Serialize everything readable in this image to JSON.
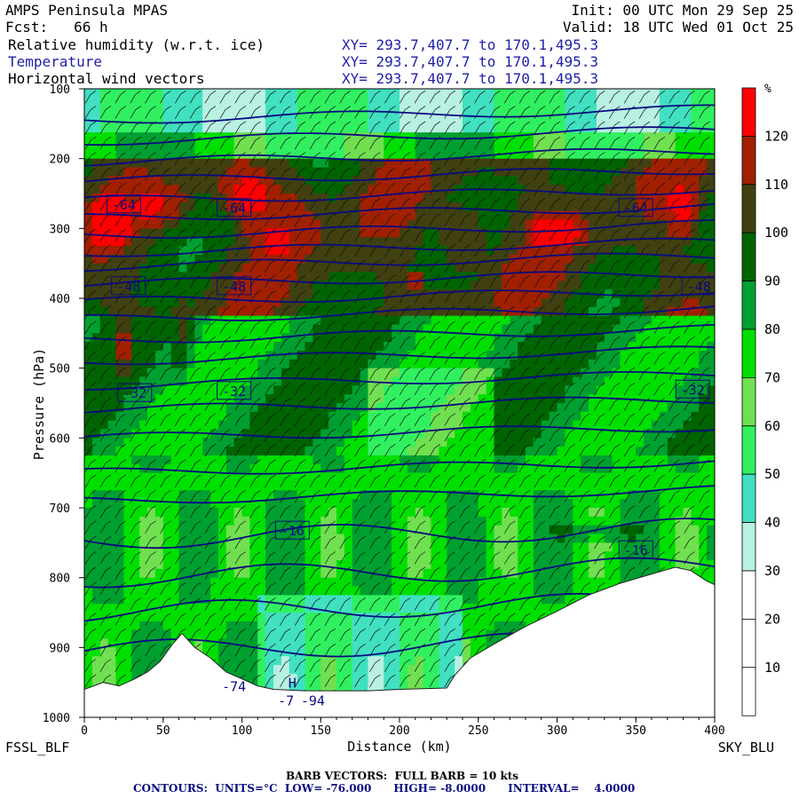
{
  "header": {
    "model": "AMPS Peninsula MPAS",
    "fcst": "Fcst:   66 h",
    "init": "Init: 00 UTC Mon 29 Sep 25",
    "valid": "Valid: 18 UTC Wed 01 Oct 25",
    "fields": [
      {
        "label": "Relative humidity (w.r.t. ice)",
        "xy": "XY= 293.7,407.7 to 170.1,495.3"
      },
      {
        "label": "Temperature",
        "xy": "XY= 293.7,407.7 to 170.1,495.3"
      },
      {
        "label": "Horizontal wind vectors",
        "xy": "XY= 293.7,407.7 to 170.1,495.3"
      }
    ]
  },
  "corner_left": "FSSL_BLF",
  "corner_right": "SKY_BLU",
  "footer": {
    "barb": "BARB VECTORS:  FULL BARB = 10 kts",
    "contours": "CONTOURS:  UNITS=°C  LOW= -76.000      HIGH= -8.0000      INTERVAL=    4.0000"
  },
  "colors": {
    "rh_scale": [
      "#ffffff",
      "#ffffff",
      "#ffffff",
      "#b8f0e2",
      "#40e0c0",
      "#30f060",
      "#70e050",
      "#00e000",
      "#00a030",
      "#006400",
      "#404010",
      "#a02000",
      "#ff0000"
    ],
    "temp_contour": "#0a0a80",
    "terrain": "#ffffff"
  },
  "chart_data": {
    "type": "heatmap",
    "xlabel": "Distance (km)",
    "ylabel": "Pressure (hPa)",
    "xlim": [
      0,
      400
    ],
    "ylim": [
      1000,
      100
    ],
    "x_ticks": [
      "0",
      "50",
      "100",
      "150",
      "200",
      "250",
      "300",
      "350",
      "400"
    ],
    "y_ticks": [
      "100",
      "200",
      "300",
      "400",
      "500",
      "600",
      "700",
      "800",
      "900",
      "1000"
    ],
    "colorbar": {
      "unit": "%",
      "ticks": [
        "120",
        "110",
        "100",
        "90",
        "80",
        "70",
        "60",
        "50",
        "40",
        "30",
        "20",
        "10"
      ]
    },
    "temperature_labels": [
      {
        "text": "-64",
        "x": 25,
        "p": 265
      },
      {
        "text": "-64",
        "x": 95,
        "p": 270
      },
      {
        "text": "-64",
        "x": 350,
        "p": 270
      },
      {
        "text": "-48",
        "x": 28,
        "p": 382
      },
      {
        "text": "-48",
        "x": 95,
        "p": 382
      },
      {
        "text": "-48",
        "x": 390,
        "p": 382
      },
      {
        "text": "-32",
        "x": 32,
        "p": 535
      },
      {
        "text": "-32",
        "x": 95,
        "p": 532
      },
      {
        "text": "-32",
        "x": 386,
        "p": 530
      },
      {
        "text": "-16",
        "x": 132,
        "p": 732
      },
      {
        "text": "-16",
        "x": 350,
        "p": 760
      },
      {
        "text": "-74",
        "x": 95,
        "p": 955
      },
      {
        "text": "-7",
        "x": 128,
        "p": 975
      },
      {
        "text": "-94",
        "x": 145,
        "p": 975
      },
      {
        "text": "H",
        "x": 132,
        "p": 950
      }
    ],
    "surface_pressure": [
      [
        0,
        960
      ],
      [
        12,
        950
      ],
      [
        22,
        955
      ],
      [
        32,
        945
      ],
      [
        40,
        935
      ],
      [
        48,
        920
      ],
      [
        56,
        895
      ],
      [
        62,
        880
      ],
      [
        70,
        900
      ],
      [
        80,
        915
      ],
      [
        90,
        935
      ],
      [
        100,
        945
      ],
      [
        110,
        955
      ],
      [
        120,
        960
      ],
      [
        140,
        962
      ],
      [
        160,
        962
      ],
      [
        180,
        962
      ],
      [
        200,
        960
      ],
      [
        230,
        958
      ],
      [
        235,
        940
      ],
      [
        245,
        915
      ],
      [
        260,
        895
      ],
      [
        280,
        870
      ],
      [
        300,
        848
      ],
      [
        320,
        825
      ],
      [
        340,
        808
      ],
      [
        360,
        795
      ],
      [
        375,
        785
      ],
      [
        385,
        790
      ],
      [
        395,
        805
      ],
      [
        400,
        810
      ]
    ],
    "isotherms_p": [
      145,
      175,
      205,
      232,
      260,
      285,
      310,
      335,
      355,
      380,
      405,
      430,
      460,
      490,
      525,
      560,
      600,
      650,
      690,
      745,
      800,
      850,
      905
    ]
  }
}
